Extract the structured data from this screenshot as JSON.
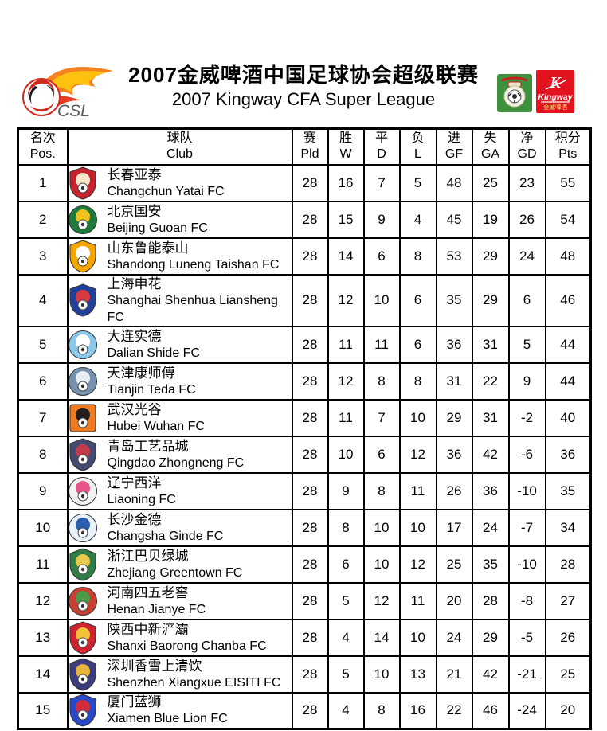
{
  "header": {
    "title_zh": "2007金威啤酒中国足球协会超级联赛",
    "title_en": "2007 Kingway CFA Super League",
    "csl_text": "CSL",
    "kingway": {
      "k": "K",
      "brand": "Kingway",
      "sub": "金威啤酒"
    },
    "colors": {
      "flame_orange": "#f58220",
      "flame_yellow": "#fcc20f",
      "ball_red": "#d12b1f",
      "cfa_green": "#3f9140",
      "kingway_red": "#e0131e"
    }
  },
  "table": {
    "columns": [
      {
        "zh": "名次",
        "en": "Pos."
      },
      {
        "zh": "球队",
        "en": "Club"
      },
      {
        "zh": "赛",
        "en": "Pld"
      },
      {
        "zh": "胜",
        "en": "W"
      },
      {
        "zh": "平",
        "en": "D"
      },
      {
        "zh": "负",
        "en": "L"
      },
      {
        "zh": "进",
        "en": "GF"
      },
      {
        "zh": "失",
        "en": "GA"
      },
      {
        "zh": "净",
        "en": "GD"
      },
      {
        "zh": "积分",
        "en": "Pts"
      }
    ],
    "rows": [
      {
        "pos": 1,
        "club_zh": "长春亚泰",
        "club_en": "Changchun Yatai FC",
        "pld": 28,
        "w": 16,
        "d": 7,
        "l": 5,
        "gf": 48,
        "ga": 25,
        "gd": 23,
        "pts": 55,
        "badge": {
          "shape": "shield",
          "main": "#c8232c",
          "secondary": "#f7e8c9"
        }
      },
      {
        "pos": 2,
        "club_zh": "北京国安",
        "club_en": "Beijing Guoan FC",
        "pld": 28,
        "w": 15,
        "d": 9,
        "l": 4,
        "gf": 45,
        "ga": 19,
        "gd": 26,
        "pts": 54,
        "badge": {
          "shape": "circle",
          "main": "#1e7a3a",
          "secondary": "#f2c31e"
        }
      },
      {
        "pos": 3,
        "club_zh": "山东鲁能泰山",
        "club_en": "Shandong Luneng Taishan FC",
        "pld": 28,
        "w": 14,
        "d": 6,
        "l": 8,
        "gf": 53,
        "ga": 29,
        "gd": 24,
        "pts": 48,
        "badge": {
          "shape": "shield",
          "main": "#f5a600",
          "secondary": "#ffffff"
        }
      },
      {
        "pos": 4,
        "club_zh": "上海申花",
        "club_en": "Shanghai Shenhua Liansheng FC",
        "pld": 28,
        "w": 12,
        "d": 10,
        "l": 6,
        "gf": 35,
        "ga": 29,
        "gd": 6,
        "pts": 46,
        "badge": {
          "shape": "shield",
          "main": "#20409a",
          "secondary": "#d93a40"
        }
      },
      {
        "pos": 5,
        "club_zh": "大连实德",
        "club_en": "Dalian Shide FC",
        "pld": 28,
        "w": 11,
        "d": 11,
        "l": 6,
        "gf": 36,
        "ga": 31,
        "gd": 5,
        "pts": 44,
        "badge": {
          "shape": "circle",
          "main": "#8cc8ea",
          "secondary": "#ffffff"
        }
      },
      {
        "pos": 6,
        "club_zh": "天津康师傅",
        "club_en": "Tianjin Teda FC",
        "pld": 28,
        "w": 12,
        "d": 8,
        "l": 8,
        "gf": 31,
        "ga": 22,
        "gd": 9,
        "pts": 44,
        "badge": {
          "shape": "circle",
          "main": "#7591ad",
          "secondary": "#e8edf2"
        }
      },
      {
        "pos": 7,
        "club_zh": "武汉光谷",
        "club_en": "Hubei Wuhan FC",
        "pld": 28,
        "w": 11,
        "d": 7,
        "l": 10,
        "gf": 29,
        "ga": 31,
        "gd": -2,
        "pts": 40,
        "badge": {
          "shape": "square",
          "main": "#f07c22",
          "secondary": "#231f20"
        }
      },
      {
        "pos": 8,
        "club_zh": "青岛工艺品城",
        "club_en": "Qingdao Zhongneng FC",
        "pld": 28,
        "w": 10,
        "d": 6,
        "l": 12,
        "gf": 36,
        "ga": 42,
        "gd": -6,
        "pts": 36,
        "badge": {
          "shape": "shield",
          "main": "#454a70",
          "secondary": "#c23a4a"
        }
      },
      {
        "pos": 9,
        "club_zh": "辽宁西洋",
        "club_en": "Liaoning FC",
        "pld": 28,
        "w": 9,
        "d": 8,
        "l": 11,
        "gf": 26,
        "ga": 36,
        "gd": -10,
        "pts": 35,
        "badge": {
          "shape": "circle",
          "main": "#f2f2f2",
          "secondary": "#e8538a"
        }
      },
      {
        "pos": 10,
        "club_zh": "长沙金德",
        "club_en": "Changsha Ginde FC",
        "pld": 28,
        "w": 8,
        "d": 10,
        "l": 10,
        "gf": 17,
        "ga": 24,
        "gd": -7,
        "pts": 34,
        "badge": {
          "shape": "circle",
          "main": "#e9f2fb",
          "secondary": "#2b5fad"
        }
      },
      {
        "pos": 11,
        "club_zh": "浙江巴贝绿城",
        "club_en": "Zhejiang Greentown FC",
        "pld": 28,
        "w": 6,
        "d": 10,
        "l": 12,
        "gf": 25,
        "ga": 35,
        "gd": -10,
        "pts": 28,
        "badge": {
          "shape": "shield",
          "main": "#2f7d47",
          "secondary": "#e9c94b"
        }
      },
      {
        "pos": 12,
        "club_zh": "河南四五老窖",
        "club_en": "Henan Jianye FC",
        "pld": 28,
        "w": 5,
        "d": 12,
        "l": 11,
        "gf": 20,
        "ga": 28,
        "gd": -8,
        "pts": 27,
        "badge": {
          "shape": "circle",
          "main": "#c84032",
          "secondary": "#4a9a4a"
        }
      },
      {
        "pos": 13,
        "club_zh": "陕西中新浐灞",
        "club_en": "Shanxi Baorong Chanba FC",
        "pld": 28,
        "w": 4,
        "d": 14,
        "l": 10,
        "gf": 24,
        "ga": 29,
        "gd": -5,
        "pts": 26,
        "badge": {
          "shape": "shield",
          "main": "#cf2330",
          "secondary": "#f3c23a"
        }
      },
      {
        "pos": 14,
        "club_zh": "深圳香雪上清饮",
        "club_en": "Shenzhen Xiangxue EISITI FC",
        "pld": 28,
        "w": 5,
        "d": 10,
        "l": 13,
        "gf": 21,
        "ga": 42,
        "gd": -21,
        "pts": 25,
        "badge": {
          "shape": "shield",
          "main": "#3d3c80",
          "secondary": "#e9b43a"
        }
      },
      {
        "pos": 15,
        "club_zh": "厦门蓝狮",
        "club_en": "Xiamen Blue Lion FC",
        "pld": 28,
        "w": 4,
        "d": 8,
        "l": 16,
        "gf": 22,
        "ga": 46,
        "gd": -24,
        "pts": 20,
        "badge": {
          "shape": "shield",
          "main": "#2a49c8",
          "secondary": "#d42a3c"
        }
      }
    ]
  }
}
